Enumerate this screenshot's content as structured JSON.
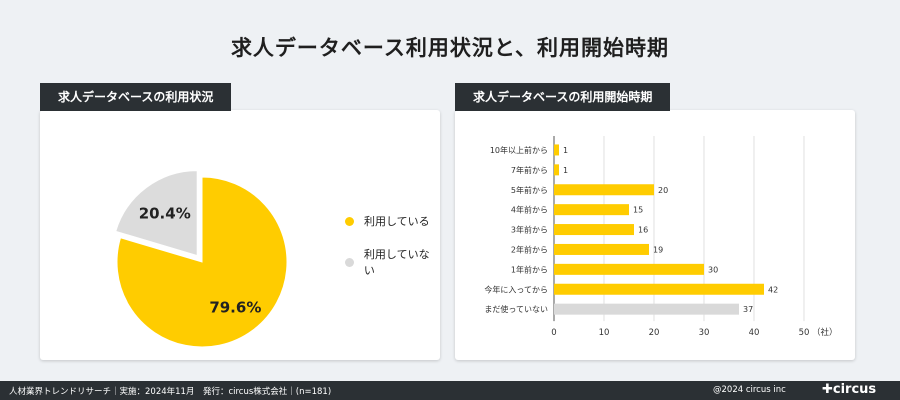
{
  "title": "求人データベース利用状況と、利用開始時期",
  "left_panel": {
    "tab_label": "求人データベースの利用状況",
    "legend": [
      {
        "label": "利用している",
        "color": "#ffcc00"
      },
      {
        "label": "利用していない",
        "color": "#d9d9d9"
      }
    ]
  },
  "right_panel": {
    "tab_label": "求人データベースの利用開始時期"
  },
  "chart_data": [
    {
      "type": "pie",
      "slices": [
        {
          "label": "利用している",
          "value": 79.6,
          "display": "79.6%",
          "color": "#ffcc00"
        },
        {
          "label": "利用していない",
          "value": 20.4,
          "display": "20.4%",
          "color": "#dcdcdc"
        }
      ]
    },
    {
      "type": "bar",
      "orientation": "horizontal",
      "categories": [
        "10年以上前から",
        "7年前から",
        "5年前から",
        "4年前から",
        "3年前から",
        "2年前から",
        "1年前から",
        "今年に入ってから",
        "まだ使っていない"
      ],
      "values": [
        1,
        1,
        20,
        15,
        16,
        19,
        30,
        42,
        37
      ],
      "colors": [
        "#ffcc00",
        "#ffcc00",
        "#ffcc00",
        "#ffcc00",
        "#ffcc00",
        "#ffcc00",
        "#ffcc00",
        "#ffcc00",
        "#d9d9d9"
      ],
      "xlim": [
        0,
        50
      ],
      "xticks": [
        "0",
        "10",
        "20",
        "30",
        "40",
        "50"
      ],
      "xunit": "（社）",
      "grid": true
    }
  ],
  "footer": {
    "text": "人材業界トレンドリサーチ｜実施：2024年11月　発行：circus株式会社｜(n=181)",
    "copyright": "@2024 circus inc",
    "logo": "✚circus"
  }
}
